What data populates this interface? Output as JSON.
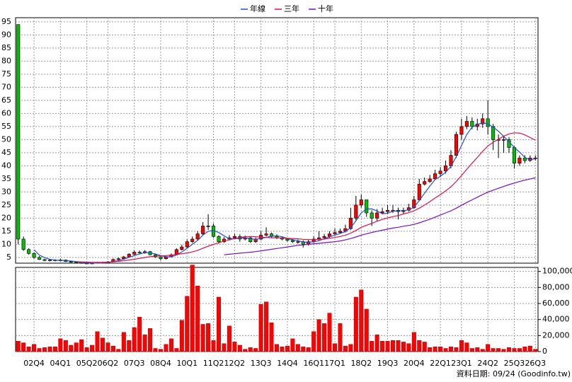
{
  "chart_data": {
    "type": "candlestick",
    "legend": "top",
    "grid": true,
    "up_color": "#ff0000",
    "down_color": "#00c000",
    "footnote": "資料日期: 09/24 (Goodinfo.tw)",
    "categories": [
      null,
      null,
      null,
      "02Q4",
      null,
      null,
      null,
      null,
      "04Q1",
      null,
      null,
      null,
      null,
      "05Q2",
      null,
      null,
      null,
      "06Q2",
      null,
      null,
      null,
      null,
      "07Q3",
      null,
      null,
      null,
      null,
      "08Q4",
      null,
      null,
      null,
      null,
      "10Q1",
      null,
      null,
      null,
      null,
      "11Q2",
      null,
      null,
      null,
      "12Q2",
      null,
      null,
      null,
      null,
      "13Q3",
      null,
      null,
      null,
      null,
      "14Q4",
      null,
      null,
      null,
      null,
      "16Q1",
      null,
      null,
      null,
      "17Q1",
      null,
      null,
      null,
      null,
      "18Q2",
      null,
      null,
      null,
      null,
      "19Q3",
      null,
      null,
      null,
      null,
      "20Q4",
      null,
      null,
      null,
      null,
      "22Q1",
      null,
      null,
      null,
      "23Q1",
      null,
      null,
      null,
      null,
      "24Q2",
      null,
      null,
      null,
      null,
      "25Q3",
      null,
      null,
      null,
      "26Q3"
    ],
    "open": [
      94,
      12,
      8,
      6.5,
      5,
      4.2,
      3.8,
      4,
      3.8,
      4,
      3.4,
      3.2,
      3,
      2.8,
      2.7,
      2.8,
      3,
      3.1,
      3.3,
      4.2,
      4.5,
      5.2,
      6.2,
      7,
      6.8,
      7.2,
      6,
      5.2,
      4.5,
      5.2,
      6,
      8,
      9,
      11,
      12,
      14,
      17,
      17,
      13,
      11,
      12,
      12.5,
      13,
      12,
      12.5,
      11,
      12,
      13.5,
      14,
      13,
      12.5,
      12,
      11.5,
      11,
      11,
      10,
      11,
      12,
      12.5,
      13,
      14,
      14.5,
      15,
      16,
      20,
      25,
      27,
      22,
      20,
      22,
      22.5,
      23,
      23,
      22.5,
      23,
      24,
      27,
      33,
      34,
      35,
      37,
      38,
      40,
      44,
      52,
      55,
      57,
      55,
      56,
      58,
      55,
      50,
      50,
      50,
      47,
      41,
      43,
      42,
      43
    ],
    "high": [
      94,
      13,
      8.5,
      7,
      5.5,
      4.5,
      4.3,
      4.3,
      4.5,
      4.2,
      3.6,
      3.4,
      3.2,
      3,
      3.1,
      3.3,
      3.4,
      3.6,
      4.6,
      4.9,
      5.6,
      6.6,
      7.6,
      7.6,
      7.8,
      7.5,
      6.3,
      5.5,
      5.6,
      6.5,
      8.5,
      9.8,
      11.8,
      13,
      15,
      18.5,
      21.5,
      18,
      13.5,
      12.8,
      13.5,
      14,
      13.8,
      13.3,
      13,
      12.6,
      15,
      16.5,
      14.5,
      13.8,
      13,
      12.4,
      12,
      11.8,
      11.5,
      11.8,
      13,
      15,
      14,
      15,
      16,
      16,
      17.5,
      24,
      28.5,
      29,
      27,
      23,
      23.5,
      24,
      25,
      25,
      24,
      24,
      25.5,
      28.5,
      35,
      35.5,
      36.5,
      38.5,
      39.5,
      42,
      46,
      53,
      58,
      59,
      58.5,
      58,
      60,
      65,
      56,
      52,
      51.5,
      51,
      47.5,
      44,
      44,
      44,
      44
    ],
    "low": [
      10,
      7.5,
      6,
      4.5,
      4,
      3.5,
      3.5,
      3.5,
      3.6,
      3.2,
      3,
      2.8,
      2.6,
      2.5,
      2.5,
      2.7,
      2.8,
      2.9,
      3.1,
      3.9,
      4.3,
      5,
      5.8,
      6.2,
      6.4,
      5.8,
      4.8,
      3.8,
      4.2,
      5,
      5.8,
      7.6,
      8.5,
      10.5,
      11.5,
      13.5,
      15.5,
      12.5,
      10.2,
      10.5,
      11.5,
      12,
      11,
      11.5,
      10.5,
      10.5,
      11.5,
      13,
      12.5,
      12,
      11.5,
      11,
      10.5,
      10.2,
      8.8,
      9.5,
      10.5,
      11.5,
      12,
      12.5,
      13.5,
      14,
      14.5,
      15.5,
      19,
      24,
      20.5,
      17,
      19,
      21.5,
      21.5,
      22,
      19.5,
      21.5,
      22.5,
      23.5,
      26.5,
      32.5,
      33.5,
      34.5,
      36,
      37,
      39,
      43,
      50,
      54,
      54,
      53.5,
      54.5,
      52,
      46,
      43,
      45,
      45,
      39,
      40,
      41,
      41.5,
      42
    ],
    "close": [
      12,
      8,
      6.5,
      5,
      4.2,
      3.8,
      4,
      3.8,
      4,
      3.4,
      3.2,
      3,
      2.8,
      2.7,
      2.8,
      3,
      3.1,
      3.3,
      4.2,
      4.5,
      5.2,
      6.2,
      7,
      6.8,
      7.2,
      6,
      5.2,
      4.5,
      5.2,
      6,
      8,
      9,
      11,
      12,
      14,
      17,
      17,
      13,
      11,
      12,
      12.5,
      13,
      12,
      12.5,
      11,
      12,
      13.5,
      14,
      13,
      12.5,
      12,
      11.5,
      11,
      11,
      10,
      11,
      12,
      12.5,
      13,
      14,
      14.5,
      15,
      16,
      20,
      25,
      27,
      22,
      20,
      22,
      22.5,
      23,
      23,
      22.5,
      23,
      24,
      27,
      33,
      34,
      35,
      37,
      38,
      40,
      44,
      52,
      55,
      57,
      55,
      56,
      58,
      55,
      50,
      50,
      50,
      47,
      41,
      43,
      42,
      43,
      43
    ],
    "ylim": [
      2.8,
      96.6
    ],
    "yticks": [
      5,
      10,
      15,
      20,
      25,
      30,
      35,
      40,
      45,
      50,
      55,
      60,
      65,
      70,
      75,
      80,
      85,
      90,
      95
    ],
    "series": [
      {
        "name": "年線",
        "color": "#1f4fd0",
        "values": [
          null,
          null,
          null,
          7.9,
          5.9,
          4.9,
          4.25,
          3.95,
          3.9,
          3.8,
          3.6,
          3.4,
          3.1,
          2.93,
          2.83,
          2.83,
          2.9,
          3.05,
          3.4,
          3.78,
          4.3,
          5.03,
          5.73,
          6.3,
          6.8,
          6.75,
          6.3,
          5.73,
          5.23,
          5.23,
          5.93,
          7.05,
          8.5,
          10,
          11.5,
          13.5,
          15,
          15.25,
          14.5,
          13.25,
          12.13,
          12.13,
          12.38,
          12.5,
          12.13,
          11.88,
          12.25,
          12.63,
          13.13,
          13.25,
          12.88,
          12.25,
          11.75,
          11.38,
          10.88,
          10.75,
          11,
          11.38,
          12.13,
          12.88,
          13.5,
          14.13,
          14.88,
          16.38,
          19,
          22,
          23.5,
          23.5,
          22.75,
          21.63,
          21.88,
          22.63,
          22.75,
          22.88,
          23.13,
          24.13,
          26.75,
          29.5,
          32.25,
          34.75,
          36,
          37.5,
          39.75,
          43.5,
          47.75,
          52,
          54.75,
          55.75,
          56.5,
          56,
          54.75,
          53.25,
          51.25,
          49.25,
          47,
          45.25,
          43.25,
          42.25,
          42.75
        ]
      },
      {
        "name": "三年",
        "color": "#e0104a",
        "values": [
          null,
          null,
          null,
          null,
          null,
          null,
          null,
          null,
          null,
          null,
          null,
          3.4,
          3.3,
          3.2,
          3.1,
          3.1,
          3.1,
          3.2,
          3.3,
          3.5,
          3.7,
          4.0,
          4.3,
          4.6,
          5.0,
          5.3,
          5.5,
          5.6,
          5.7,
          5.9,
          6.1,
          6.4,
          6.7,
          7.1,
          7.7,
          8.5,
          9.3,
          10,
          10.6,
          11.2,
          11.7,
          12.2,
          12.6,
          12.9,
          13.0,
          12.9,
          12.7,
          12.6,
          12.5,
          12.5,
          12.4,
          12.3,
          12.2,
          12.1,
          11.9,
          11.8,
          11.8,
          11.9,
          12.0,
          12.3,
          12.6,
          13.0,
          13.5,
          14.3,
          15.3,
          16.5,
          17.3,
          18.0,
          18.8,
          19.5,
          20.1,
          20.6,
          21.0,
          21.6,
          22.1,
          22.8,
          23.8,
          25.0,
          26.3,
          27.7,
          29.0,
          30.4,
          32.0,
          34.0,
          36.3,
          38.7,
          41.0,
          43.2,
          45.5,
          47.6,
          49.0,
          50.2,
          51.3,
          52.2,
          52.6,
          52.5,
          51.8,
          50.8,
          49.8
        ]
      },
      {
        "name": "十年",
        "color": "#7a10c0",
        "values": [
          null,
          null,
          null,
          null,
          null,
          null,
          null,
          null,
          null,
          null,
          null,
          null,
          null,
          null,
          null,
          null,
          null,
          null,
          null,
          null,
          null,
          null,
          null,
          null,
          null,
          null,
          null,
          null,
          null,
          null,
          null,
          null,
          null,
          null,
          null,
          null,
          null,
          null,
          null,
          6.0,
          6.2,
          6.4,
          6.6,
          6.8,
          7.0,
          7.2,
          7.5,
          7.8,
          8.1,
          8.4,
          8.7,
          9.0,
          9.3,
          9.6,
          9.8,
          10.0,
          10.2,
          10.4,
          10.6,
          10.8,
          11.0,
          11.3,
          11.7,
          12.2,
          12.8,
          13.5,
          14.0,
          14.5,
          15.0,
          15.4,
          15.8,
          16.2,
          16.5,
          16.9,
          17.2,
          17.6,
          18.2,
          18.9,
          19.6,
          20.4,
          21.2,
          22.0,
          22.8,
          23.8,
          24.9,
          26.0,
          27.0,
          28.0,
          29.0,
          29.9,
          30.7,
          31.4,
          32.1,
          32.8,
          33.4,
          34.0,
          34.5,
          35.0,
          35.4
        ]
      }
    ],
    "volume": {
      "color": "#ff0000",
      "values": [
        13000,
        11000,
        6000,
        9000,
        4000,
        5000,
        6000,
        6000,
        16000,
        14000,
        8000,
        11000,
        15000,
        5000,
        8000,
        25000,
        17000,
        11000,
        7000,
        3000,
        24000,
        14000,
        30000,
        43000,
        21000,
        29000,
        4000,
        3000,
        9000,
        16000,
        4000,
        39000,
        69000,
        108000,
        82000,
        34000,
        35000,
        14000,
        68000,
        10000,
        32000,
        12000,
        8000,
        3000,
        5000,
        4000,
        59000,
        62000,
        36000,
        9000,
        6000,
        7000,
        16000,
        9000,
        6000,
        5000,
        25000,
        40000,
        35000,
        48000,
        10000,
        35000,
        7000,
        9000,
        68000,
        77000,
        53000,
        13000,
        21000,
        13000,
        13000,
        14000,
        14000,
        12000,
        10000,
        24000,
        14000,
        12000,
        5000,
        6000,
        6000,
        4000,
        6000,
        5000,
        14000,
        11000,
        4000,
        5000,
        3000,
        9000,
        4000,
        4000,
        3000,
        5000,
        4000,
        4000,
        6000,
        7000,
        3000
      ],
      "ylim": [
        0,
        105000
      ],
      "yticks": [
        0,
        {
          "value": 20000,
          "label": "20,000"
        },
        {
          "value": 40000,
          "label": "40,000"
        },
        {
          "value": 60000,
          "label": "60,000"
        },
        {
          "value": 80000,
          "label": "80,000"
        },
        {
          "value": 100000,
          "label": "100,000"
        }
      ]
    }
  }
}
